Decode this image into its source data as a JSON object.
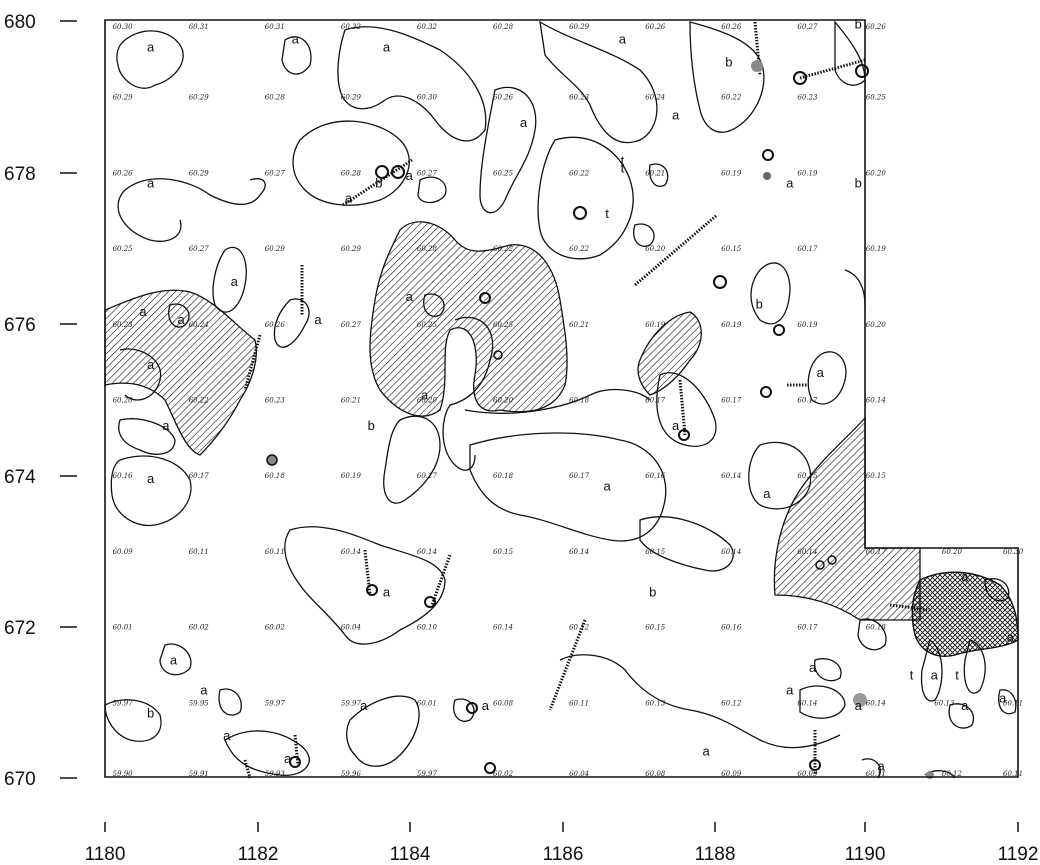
{
  "axes": {
    "x_ticks": [
      "1180",
      "1182",
      "1184",
      "1186",
      "1188",
      "1190",
      "1192"
    ],
    "y_ticks": [
      "680",
      "678",
      "676",
      "674",
      "672",
      "670"
    ],
    "x_range": [
      1180,
      1192
    ],
    "y_range": [
      670,
      680
    ]
  },
  "elevations": [
    {
      "x": 1180.1,
      "y": 680.0,
      "v": "60.30"
    },
    {
      "x": 1181.1,
      "y": 680.0,
      "v": "60.31"
    },
    {
      "x": 1182.1,
      "y": 680.0,
      "v": "60.31"
    },
    {
      "x": 1183.1,
      "y": 680.0,
      "v": "60.32"
    },
    {
      "x": 1184.1,
      "y": 680.0,
      "v": "60.32"
    },
    {
      "x": 1185.1,
      "y": 680.0,
      "v": "60.28"
    },
    {
      "x": 1186.1,
      "y": 680.0,
      "v": "60.29"
    },
    {
      "x": 1187.1,
      "y": 680.0,
      "v": "60.26"
    },
    {
      "x": 1188.1,
      "y": 680.0,
      "v": "60.26"
    },
    {
      "x": 1189.1,
      "y": 680.0,
      "v": "60.27"
    },
    {
      "x": 1190.0,
      "y": 680.0,
      "v": "60.26"
    },
    {
      "x": 1180.1,
      "y": 679.0,
      "v": "60.29"
    },
    {
      "x": 1181.1,
      "y": 679.0,
      "v": "60.29"
    },
    {
      "x": 1182.1,
      "y": 679.0,
      "v": "60.28"
    },
    {
      "x": 1183.1,
      "y": 679.0,
      "v": "60.29"
    },
    {
      "x": 1184.1,
      "y": 679.0,
      "v": "60.30"
    },
    {
      "x": 1185.1,
      "y": 679.0,
      "v": "60.26"
    },
    {
      "x": 1186.1,
      "y": 679.0,
      "v": "60.23"
    },
    {
      "x": 1187.1,
      "y": 679.0,
      "v": "60.24"
    },
    {
      "x": 1188.1,
      "y": 679.0,
      "v": "60.22"
    },
    {
      "x": 1189.1,
      "y": 679.0,
      "v": "60.23"
    },
    {
      "x": 1190.0,
      "y": 679.0,
      "v": "60.25"
    },
    {
      "x": 1180.1,
      "y": 678.0,
      "v": "60.26"
    },
    {
      "x": 1181.1,
      "y": 678.0,
      "v": "60.29"
    },
    {
      "x": 1182.1,
      "y": 678.0,
      "v": "60.27"
    },
    {
      "x": 1183.1,
      "y": 678.0,
      "v": "60.28"
    },
    {
      "x": 1184.1,
      "y": 678.0,
      "v": "60.27"
    },
    {
      "x": 1185.1,
      "y": 678.0,
      "v": "60.25"
    },
    {
      "x": 1186.1,
      "y": 678.0,
      "v": "60.22"
    },
    {
      "x": 1187.1,
      "y": 678.0,
      "v": "60.21"
    },
    {
      "x": 1188.1,
      "y": 678.0,
      "v": "60.19"
    },
    {
      "x": 1189.1,
      "y": 678.0,
      "v": "60.19"
    },
    {
      "x": 1190.0,
      "y": 678.0,
      "v": "60.20"
    },
    {
      "x": 1180.1,
      "y": 677.0,
      "v": "60.25"
    },
    {
      "x": 1181.1,
      "y": 677.0,
      "v": "60.27"
    },
    {
      "x": 1182.1,
      "y": 677.0,
      "v": "60.29"
    },
    {
      "x": 1183.1,
      "y": 677.0,
      "v": "60.29"
    },
    {
      "x": 1184.1,
      "y": 677.0,
      "v": "60.28"
    },
    {
      "x": 1185.1,
      "y": 677.0,
      "v": "60.22"
    },
    {
      "x": 1186.1,
      "y": 677.0,
      "v": "60.22"
    },
    {
      "x": 1187.1,
      "y": 677.0,
      "v": "60.20"
    },
    {
      "x": 1188.1,
      "y": 677.0,
      "v": "60.15"
    },
    {
      "x": 1189.1,
      "y": 677.0,
      "v": "60.17"
    },
    {
      "x": 1190.0,
      "y": 677.0,
      "v": "60.19"
    },
    {
      "x": 1180.1,
      "y": 676.0,
      "v": "60.23"
    },
    {
      "x": 1181.1,
      "y": 676.0,
      "v": "60.24"
    },
    {
      "x": 1182.1,
      "y": 676.0,
      "v": "60.26"
    },
    {
      "x": 1183.1,
      "y": 676.0,
      "v": "60.27"
    },
    {
      "x": 1184.1,
      "y": 676.0,
      "v": "60.25"
    },
    {
      "x": 1185.1,
      "y": 676.0,
      "v": "60.25"
    },
    {
      "x": 1186.1,
      "y": 676.0,
      "v": "60.21"
    },
    {
      "x": 1187.1,
      "y": 676.0,
      "v": "60.19"
    },
    {
      "x": 1188.1,
      "y": 676.0,
      "v": "60.19"
    },
    {
      "x": 1189.1,
      "y": 676.0,
      "v": "60.19"
    },
    {
      "x": 1190.0,
      "y": 676.0,
      "v": "60.20"
    },
    {
      "x": 1180.1,
      "y": 675.0,
      "v": "60.20"
    },
    {
      "x": 1181.1,
      "y": 675.0,
      "v": "60.22"
    },
    {
      "x": 1182.1,
      "y": 675.0,
      "v": "60.23"
    },
    {
      "x": 1183.1,
      "y": 675.0,
      "v": "60.21"
    },
    {
      "x": 1184.1,
      "y": 675.0,
      "v": "60.20"
    },
    {
      "x": 1185.1,
      "y": 675.0,
      "v": "60.20"
    },
    {
      "x": 1186.1,
      "y": 675.0,
      "v": "60.18"
    },
    {
      "x": 1187.1,
      "y": 675.0,
      "v": "60.17"
    },
    {
      "x": 1188.1,
      "y": 675.0,
      "v": "60.17"
    },
    {
      "x": 1189.1,
      "y": 675.0,
      "v": "60.17"
    },
    {
      "x": 1190.0,
      "y": 675.0,
      "v": "60.14"
    },
    {
      "x": 1180.1,
      "y": 674.0,
      "v": "60.16"
    },
    {
      "x": 1181.1,
      "y": 674.0,
      "v": "60.17"
    },
    {
      "x": 1182.1,
      "y": 674.0,
      "v": "60.18"
    },
    {
      "x": 1183.1,
      "y": 674.0,
      "v": "60.19"
    },
    {
      "x": 1184.1,
      "y": 674.0,
      "v": "60.17"
    },
    {
      "x": 1185.1,
      "y": 674.0,
      "v": "60.18"
    },
    {
      "x": 1186.1,
      "y": 674.0,
      "v": "60.17"
    },
    {
      "x": 1187.1,
      "y": 674.0,
      "v": "60.16"
    },
    {
      "x": 1188.1,
      "y": 674.0,
      "v": "60.14"
    },
    {
      "x": 1189.1,
      "y": 674.0,
      "v": "60.15"
    },
    {
      "x": 1190.0,
      "y": 674.0,
      "v": "60.15"
    },
    {
      "x": 1180.1,
      "y": 673.0,
      "v": "60.09"
    },
    {
      "x": 1181.1,
      "y": 673.0,
      "v": "60.11"
    },
    {
      "x": 1182.1,
      "y": 673.0,
      "v": "60.11"
    },
    {
      "x": 1183.1,
      "y": 673.0,
      "v": "60.14"
    },
    {
      "x": 1184.1,
      "y": 673.0,
      "v": "60.14"
    },
    {
      "x": 1185.1,
      "y": 673.0,
      "v": "60.15"
    },
    {
      "x": 1186.1,
      "y": 673.0,
      "v": "60.14"
    },
    {
      "x": 1187.1,
      "y": 673.0,
      "v": "60.15"
    },
    {
      "x": 1188.1,
      "y": 673.0,
      "v": "60.14"
    },
    {
      "x": 1189.1,
      "y": 673.0,
      "v": "60.14"
    },
    {
      "x": 1190.0,
      "y": 673.0,
      "v": "60.17"
    },
    {
      "x": 1191.0,
      "y": 673.0,
      "v": "60.20"
    },
    {
      "x": 1191.9,
      "y": 673.0,
      "v": "60.30"
    },
    {
      "x": 1180.1,
      "y": 672.0,
      "v": "60.01"
    },
    {
      "x": 1181.1,
      "y": 672.0,
      "v": "60.02"
    },
    {
      "x": 1182.1,
      "y": 672.0,
      "v": "60.02"
    },
    {
      "x": 1183.1,
      "y": 672.0,
      "v": "60.04"
    },
    {
      "x": 1184.1,
      "y": 672.0,
      "v": "60.10"
    },
    {
      "x": 1185.1,
      "y": 672.0,
      "v": "60.14"
    },
    {
      "x": 1186.1,
      "y": 672.0,
      "v": "60.12"
    },
    {
      "x": 1187.1,
      "y": 672.0,
      "v": "60.15"
    },
    {
      "x": 1188.1,
      "y": 672.0,
      "v": "60.16"
    },
    {
      "x": 1189.1,
      "y": 672.0,
      "v": "60.17"
    },
    {
      "x": 1190.0,
      "y": 672.0,
      "v": "60.18"
    },
    {
      "x": 1180.1,
      "y": 671.0,
      "v": "59.97"
    },
    {
      "x": 1181.1,
      "y": 671.0,
      "v": "59.95"
    },
    {
      "x": 1182.1,
      "y": 671.0,
      "v": "59.97"
    },
    {
      "x": 1183.1,
      "y": 671.0,
      "v": "59.97"
    },
    {
      "x": 1184.1,
      "y": 671.0,
      "v": "60.01"
    },
    {
      "x": 1185.1,
      "y": 671.0,
      "v": "60.08"
    },
    {
      "x": 1186.1,
      "y": 671.0,
      "v": "60.11"
    },
    {
      "x": 1187.1,
      "y": 671.0,
      "v": "60.13"
    },
    {
      "x": 1188.1,
      "y": 671.0,
      "v": "60.12"
    },
    {
      "x": 1189.1,
      "y": 671.0,
      "v": "60.14"
    },
    {
      "x": 1190.0,
      "y": 671.0,
      "v": "60.14"
    },
    {
      "x": 1190.9,
      "y": 671.0,
      "v": "60.13"
    },
    {
      "x": 1191.9,
      "y": 671.0,
      "v": "60.11"
    },
    {
      "x": 1180.1,
      "y": 670.0,
      "v": "59.90"
    },
    {
      "x": 1181.1,
      "y": 670.0,
      "v": "59.91"
    },
    {
      "x": 1182.1,
      "y": 670.0,
      "v": "59.93"
    },
    {
      "x": 1183.1,
      "y": 670.0,
      "v": "59.96"
    },
    {
      "x": 1184.1,
      "y": 670.0,
      "v": "59.97"
    },
    {
      "x": 1185.1,
      "y": 670.0,
      "v": "60.02"
    },
    {
      "x": 1186.1,
      "y": 670.0,
      "v": "60.04"
    },
    {
      "x": 1187.1,
      "y": 670.0,
      "v": "60.08"
    },
    {
      "x": 1188.1,
      "y": 670.0,
      "v": "60.09"
    },
    {
      "x": 1189.1,
      "y": 670.0,
      "v": "60.09"
    },
    {
      "x": 1190.0,
      "y": 670.0,
      "v": "60.11"
    },
    {
      "x": 1191.0,
      "y": 670.0,
      "v": "60.12"
    },
    {
      "x": 1191.9,
      "y": 670.0,
      "v": "60.11"
    }
  ],
  "zone_labels": [
    {
      "x": 1180.6,
      "y": 679.6,
      "t": "a"
    },
    {
      "x": 1182.5,
      "y": 679.7,
      "t": "a"
    },
    {
      "x": 1183.7,
      "y": 679.6,
      "t": "a"
    },
    {
      "x": 1186.8,
      "y": 679.7,
      "t": "a"
    },
    {
      "x": 1188.2,
      "y": 679.4,
      "t": "b"
    },
    {
      "x": 1189.9,
      "y": 679.9,
      "t": "b"
    },
    {
      "x": 1185.5,
      "y": 678.6,
      "t": "a"
    },
    {
      "x": 1187.5,
      "y": 678.7,
      "t": "a"
    },
    {
      "x": 1180.6,
      "y": 677.8,
      "t": "a"
    },
    {
      "x": 1183.2,
      "y": 677.6,
      "t": "a"
    },
    {
      "x": 1183.6,
      "y": 677.8,
      "t": "b"
    },
    {
      "x": 1184.0,
      "y": 677.9,
      "t": "a"
    },
    {
      "x": 1186.8,
      "y": 678.1,
      "t": "t"
    },
    {
      "x": 1186.6,
      "y": 677.4,
      "t": "t"
    },
    {
      "x": 1189.0,
      "y": 677.8,
      "t": "a"
    },
    {
      "x": 1189.9,
      "y": 677.8,
      "t": "b"
    },
    {
      "x": 1181.7,
      "y": 676.5,
      "t": "a"
    },
    {
      "x": 1180.5,
      "y": 676.1,
      "t": "a"
    },
    {
      "x": 1181.0,
      "y": 676.0,
      "t": "a"
    },
    {
      "x": 1182.8,
      "y": 676.0,
      "t": "a"
    },
    {
      "x": 1184.0,
      "y": 676.3,
      "t": "a"
    },
    {
      "x": 1188.6,
      "y": 676.2,
      "t": "b"
    },
    {
      "x": 1180.6,
      "y": 675.4,
      "t": "a"
    },
    {
      "x": 1180.8,
      "y": 674.6,
      "t": "a"
    },
    {
      "x": 1189.4,
      "y": 675.3,
      "t": "a"
    },
    {
      "x": 1183.5,
      "y": 674.6,
      "t": "b"
    },
    {
      "x": 1184.2,
      "y": 675.0,
      "t": "a"
    },
    {
      "x": 1187.5,
      "y": 674.6,
      "t": "a"
    },
    {
      "x": 1180.6,
      "y": 673.9,
      "t": "a"
    },
    {
      "x": 1186.6,
      "y": 673.8,
      "t": "a"
    },
    {
      "x": 1188.7,
      "y": 673.7,
      "t": "a"
    },
    {
      "x": 1183.7,
      "y": 672.4,
      "t": "a"
    },
    {
      "x": 1187.2,
      "y": 672.4,
      "t": "b"
    },
    {
      "x": 1180.9,
      "y": 671.5,
      "t": "a"
    },
    {
      "x": 1181.3,
      "y": 671.1,
      "t": "a"
    },
    {
      "x": 1180.6,
      "y": 670.8,
      "t": "b"
    },
    {
      "x": 1181.6,
      "y": 670.5,
      "t": "a"
    },
    {
      "x": 1182.4,
      "y": 670.2,
      "t": "a"
    },
    {
      "x": 1183.4,
      "y": 670.9,
      "t": "a"
    },
    {
      "x": 1185.0,
      "y": 670.9,
      "t": "a"
    },
    {
      "x": 1187.9,
      "y": 670.3,
      "t": "a"
    },
    {
      "x": 1189.3,
      "y": 671.4,
      "t": "a"
    },
    {
      "x": 1189.0,
      "y": 671.1,
      "t": "a"
    },
    {
      "x": 1189.9,
      "y": 670.9,
      "t": "a"
    },
    {
      "x": 1191.3,
      "y": 670.9,
      "t": "a"
    },
    {
      "x": 1191.8,
      "y": 671.0,
      "t": "a"
    },
    {
      "x": 1191.9,
      "y": 671.8,
      "t": "a"
    },
    {
      "x": 1190.6,
      "y": 671.3,
      "t": "t"
    },
    {
      "x": 1190.9,
      "y": 671.3,
      "t": "a"
    },
    {
      "x": 1191.2,
      "y": 671.3,
      "t": "t"
    },
    {
      "x": 1191.3,
      "y": 672.6,
      "t": "a"
    },
    {
      "x": 1190.2,
      "y": 670.1,
      "t": "a"
    },
    {
      "x": 1186.8,
      "y": 678.0,
      "t": "t"
    }
  ],
  "colors": {
    "ink": "#111111",
    "pit": "#777777"
  }
}
